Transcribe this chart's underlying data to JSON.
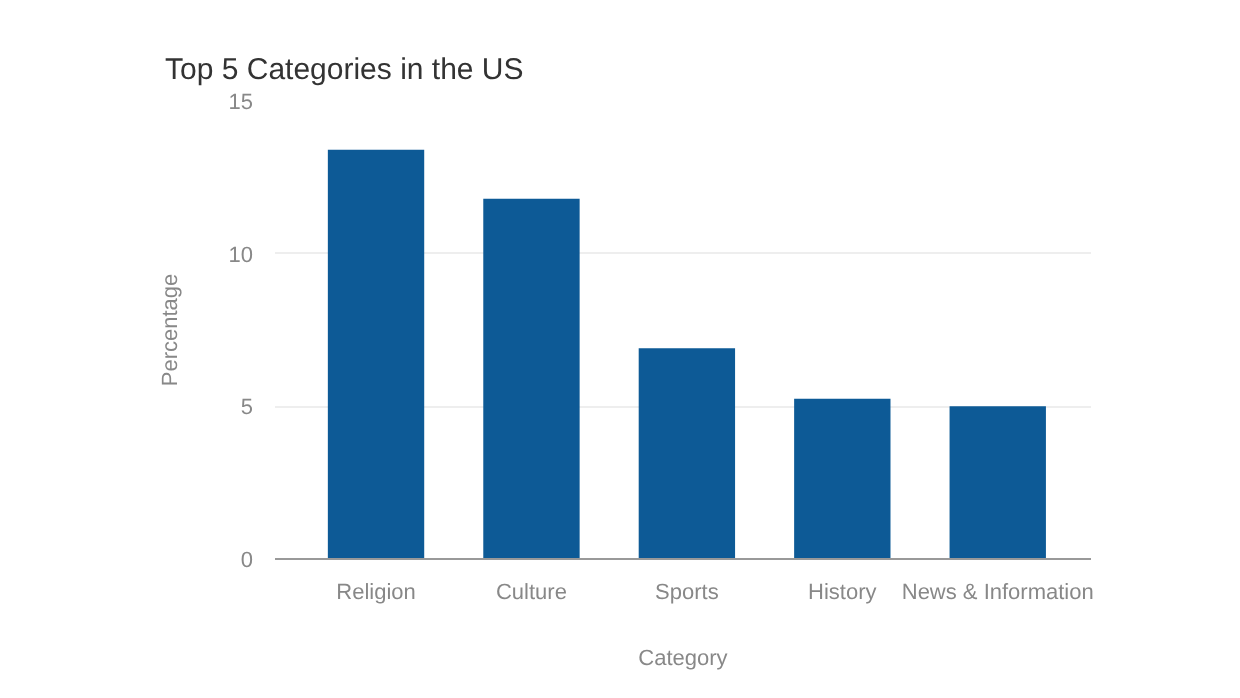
{
  "chart_data": {
    "type": "bar",
    "title": "Top 5 Categories in the US",
    "xlabel": "Category",
    "ylabel": "Percentage",
    "categories": [
      "Religion",
      "Culture",
      "Sports",
      "History",
      "News & Information"
    ],
    "values": [
      13.4,
      11.8,
      6.9,
      5.25,
      5.0
    ],
    "color": "#0d5a96",
    "ylim": [
      0,
      15
    ],
    "yticks": [
      0,
      5,
      10,
      15
    ],
    "grid": "y"
  }
}
